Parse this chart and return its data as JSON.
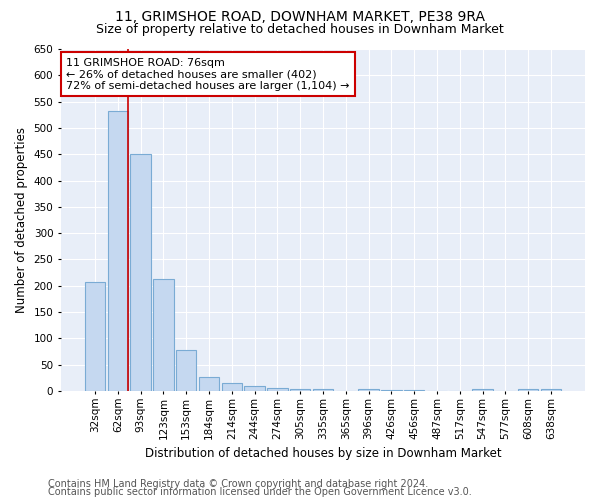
{
  "title": "11, GRIMSHOE ROAD, DOWNHAM MARKET, PE38 9RA",
  "subtitle": "Size of property relative to detached houses in Downham Market",
  "xlabel": "Distribution of detached houses by size in Downham Market",
  "ylabel": "Number of detached properties",
  "categories": [
    "32sqm",
    "62sqm",
    "93sqm",
    "123sqm",
    "153sqm",
    "184sqm",
    "214sqm",
    "244sqm",
    "274sqm",
    "305sqm",
    "335sqm",
    "365sqm",
    "396sqm",
    "426sqm",
    "456sqm",
    "487sqm",
    "517sqm",
    "547sqm",
    "577sqm",
    "608sqm",
    "638sqm"
  ],
  "values": [
    207,
    533,
    450,
    213,
    78,
    27,
    16,
    10,
    5,
    4,
    4,
    0,
    4,
    1,
    1,
    0,
    0,
    4,
    0,
    4,
    4
  ],
  "bar_color": "#c5d8f0",
  "bar_edge_color": "#7aabd4",
  "annotation_text": "11 GRIMSHOE ROAD: 76sqm\n← 26% of detached houses are smaller (402)\n72% of semi-detached houses are larger (1,104) →",
  "annotation_box_color": "#ffffff",
  "annotation_box_edge_color": "#cc0000",
  "property_line_color": "#cc0000",
  "ylim": [
    0,
    650
  ],
  "yticks": [
    0,
    50,
    100,
    150,
    200,
    250,
    300,
    350,
    400,
    450,
    500,
    550,
    600,
    650
  ],
  "footer_line1": "Contains HM Land Registry data © Crown copyright and database right 2024.",
  "footer_line2": "Contains public sector information licensed under the Open Government Licence v3.0.",
  "plot_bg_color": "#e8eef8",
  "fig_bg_color": "#ffffff",
  "grid_color": "#ffffff",
  "title_fontsize": 10,
  "subtitle_fontsize": 9,
  "axis_label_fontsize": 8.5,
  "tick_fontsize": 7.5,
  "annotation_fontsize": 8,
  "footer_fontsize": 7
}
